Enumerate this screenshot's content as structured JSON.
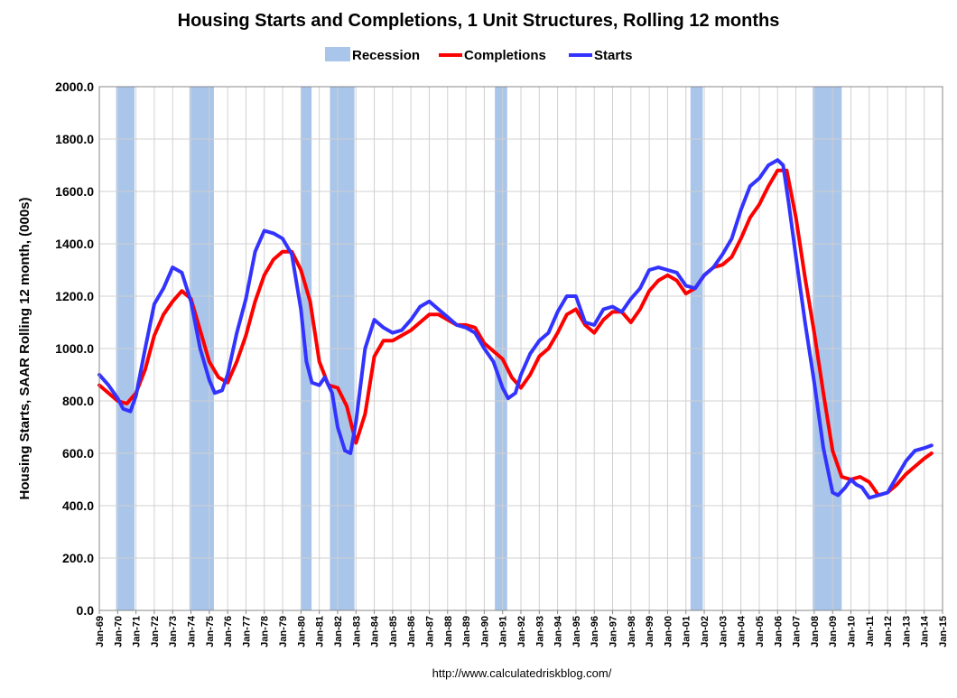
{
  "chart_data": {
    "type": "line",
    "title": "Housing Starts and Completions, 1 Unit Structures, Rolling 12 months",
    "ylabel": "Housing Starts, SAAR Rolling 12 month, (000s)",
    "xlabel": "",
    "source": "http://www.calculatedriskblog.com/",
    "ylim": [
      0,
      2000
    ],
    "xlim": [
      1969.0,
      2015.0
    ],
    "yticks": [
      "0.0",
      "200.0",
      "400.0",
      "600.0",
      "800.0",
      "1000.0",
      "1200.0",
      "1400.0",
      "1600.0",
      "1800.0",
      "2000.0"
    ],
    "xticks": [
      "Jan-69",
      "Jan-70",
      "Jan-71",
      "Jan-72",
      "Jan-73",
      "Jan-74",
      "Jan-75",
      "Jan-76",
      "Jan-77",
      "Jan-78",
      "Jan-79",
      "Jan-80",
      "Jan-81",
      "Jan-82",
      "Jan-83",
      "Jan-84",
      "Jan-85",
      "Jan-86",
      "Jan-87",
      "Jan-88",
      "Jan-89",
      "Jan-90",
      "Jan-91",
      "Jan-92",
      "Jan-93",
      "Jan-94",
      "Jan-95",
      "Jan-96",
      "Jan-97",
      "Jan-98",
      "Jan-99",
      "Jan-00",
      "Jan-01",
      "Jan-02",
      "Jan-03",
      "Jan-04",
      "Jan-05",
      "Jan-06",
      "Jan-07",
      "Jan-08",
      "Jan-09",
      "Jan-10",
      "Jan-11",
      "Jan-12",
      "Jan-13",
      "Jan-14",
      "Jan-15"
    ],
    "grid": true,
    "legend_position": "top-center",
    "legend": [
      "Recession",
      "Completions",
      "Starts"
    ],
    "colors": {
      "recession": "#a9c5ea",
      "completions": "#ff0000",
      "starts": "#3333ff",
      "grid": "#d0d0d0"
    },
    "recessions": [
      [
        1969.92,
        1970.92
      ],
      [
        1973.92,
        1975.25
      ],
      [
        1980.0,
        1980.58
      ],
      [
        1981.58,
        1982.92
      ],
      [
        1990.58,
        1991.25
      ],
      [
        2001.25,
        2001.92
      ],
      [
        2007.92,
        2009.5
      ]
    ],
    "series": [
      {
        "name": "Starts",
        "x": [
          1969.0,
          1969.5,
          1970.0,
          1970.3,
          1970.7,
          1971.0,
          1971.5,
          1972.0,
          1972.5,
          1973.0,
          1973.5,
          1974.0,
          1974.5,
          1975.0,
          1975.3,
          1975.7,
          1976.0,
          1976.5,
          1977.0,
          1977.5,
          1978.0,
          1978.5,
          1979.0,
          1979.5,
          1980.0,
          1980.3,
          1980.6,
          1981.0,
          1981.3,
          1981.7,
          1982.0,
          1982.4,
          1982.7,
          1983.0,
          1983.5,
          1984.0,
          1984.5,
          1985.0,
          1985.5,
          1986.0,
          1986.5,
          1987.0,
          1987.5,
          1988.0,
          1988.5,
          1989.0,
          1989.5,
          1990.0,
          1990.5,
          1991.0,
          1991.3,
          1991.7,
          1992.0,
          1992.5,
          1993.0,
          1993.5,
          1994.0,
          1994.5,
          1995.0,
          1995.5,
          1996.0,
          1996.5,
          1997.0,
          1997.5,
          1998.0,
          1998.5,
          1999.0,
          1999.5,
          2000.0,
          2000.5,
          2001.0,
          2001.5,
          2002.0,
          2002.5,
          2003.0,
          2003.5,
          2004.0,
          2004.5,
          2005.0,
          2005.5,
          2006.0,
          2006.3,
          2006.6,
          2007.0,
          2007.5,
          2008.0,
          2008.5,
          2009.0,
          2009.3,
          2009.7,
          2010.0,
          2010.3,
          2010.6,
          2011.0,
          2011.5,
          2012.0,
          2012.5,
          2013.0,
          2013.5,
          2014.0,
          2014.4
        ],
        "values": [
          900,
          860,
          810,
          770,
          760,
          820,
          1000,
          1170,
          1230,
          1310,
          1290,
          1180,
          1000,
          880,
          830,
          840,
          900,
          1060,
          1190,
          1370,
          1450,
          1440,
          1420,
          1360,
          1150,
          950,
          870,
          860,
          890,
          830,
          700,
          610,
          600,
          720,
          1000,
          1110,
          1080,
          1060,
          1070,
          1110,
          1160,
          1180,
          1150,
          1120,
          1090,
          1080,
          1060,
          1000,
          950,
          850,
          810,
          830,
          900,
          980,
          1030,
          1060,
          1140,
          1200,
          1200,
          1100,
          1090,
          1150,
          1160,
          1140,
          1190,
          1230,
          1300,
          1310,
          1300,
          1290,
          1240,
          1230,
          1280,
          1310,
          1360,
          1420,
          1530,
          1620,
          1650,
          1700,
          1720,
          1700,
          1560,
          1350,
          1100,
          870,
          620,
          450,
          440,
          470,
          500,
          480,
          470,
          430,
          440,
          450,
          510,
          570,
          610,
          620,
          630
        ]
      },
      {
        "name": "Completions",
        "x": [
          1969.0,
          1969.5,
          1970.0,
          1970.5,
          1971.0,
          1971.5,
          1972.0,
          1972.5,
          1973.0,
          1973.5,
          1974.0,
          1974.5,
          1975.0,
          1975.5,
          1976.0,
          1976.5,
          1977.0,
          1977.5,
          1978.0,
          1978.5,
          1979.0,
          1979.5,
          1980.0,
          1980.5,
          1981.0,
          1981.5,
          1982.0,
          1982.5,
          1983.0,
          1983.5,
          1984.0,
          1984.5,
          1985.0,
          1985.5,
          1986.0,
          1986.5,
          1987.0,
          1987.5,
          1988.0,
          1988.5,
          1989.0,
          1989.5,
          1990.0,
          1990.5,
          1991.0,
          1991.5,
          1992.0,
          1992.5,
          1993.0,
          1993.5,
          1994.0,
          1994.5,
          1995.0,
          1995.5,
          1996.0,
          1996.5,
          1997.0,
          1997.5,
          1998.0,
          1998.5,
          1999.0,
          1999.5,
          2000.0,
          2000.5,
          2001.0,
          2001.5,
          2002.0,
          2002.5,
          2003.0,
          2003.5,
          2004.0,
          2004.5,
          2005.0,
          2005.5,
          2006.0,
          2006.5,
          2007.0,
          2007.5,
          2008.0,
          2008.5,
          2009.0,
          2009.5,
          2010.0,
          2010.5,
          2011.0,
          2011.5,
          2012.0,
          2012.5,
          2013.0,
          2013.5,
          2014.0,
          2014.4
        ],
        "values": [
          860,
          830,
          800,
          790,
          830,
          920,
          1050,
          1130,
          1180,
          1220,
          1190,
          1070,
          950,
          890,
          870,
          950,
          1050,
          1180,
          1280,
          1340,
          1370,
          1370,
          1300,
          1180,
          950,
          860,
          850,
          780,
          640,
          750,
          970,
          1030,
          1030,
          1050,
          1070,
          1100,
          1130,
          1130,
          1110,
          1090,
          1090,
          1080,
          1020,
          990,
          960,
          890,
          850,
          900,
          970,
          1000,
          1060,
          1130,
          1150,
          1090,
          1060,
          1110,
          1140,
          1140,
          1100,
          1150,
          1220,
          1260,
          1280,
          1260,
          1210,
          1230,
          1280,
          1310,
          1320,
          1350,
          1420,
          1500,
          1550,
          1620,
          1680,
          1680,
          1500,
          1270,
          1060,
          830,
          610,
          510,
          500,
          510,
          490,
          440,
          450,
          480,
          520,
          550,
          580,
          600
        ]
      }
    ]
  }
}
